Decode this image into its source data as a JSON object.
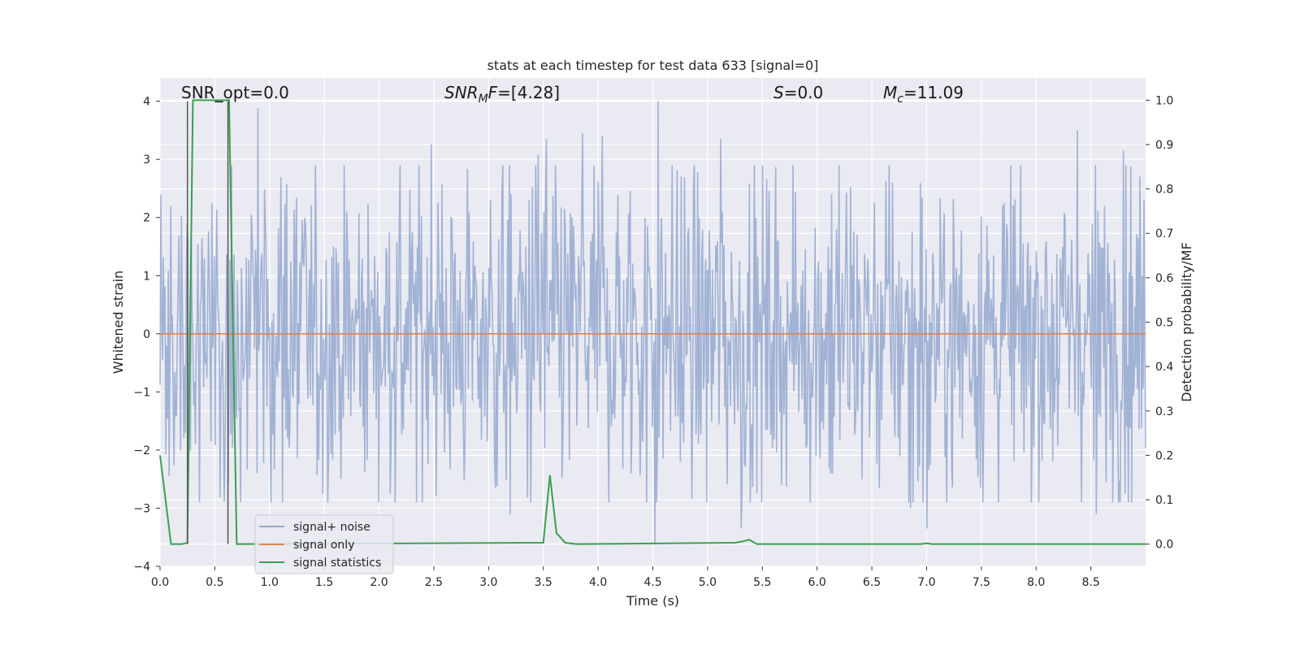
{
  "chart_data": {
    "type": "line",
    "title": "stats at each timestep for test data 633 [signal=0]",
    "xlabel": "Time (s)",
    "ylabel": "Whitened strain",
    "y2label": "Detection probability/MF",
    "xlim": [
      0.0,
      9.0
    ],
    "ylim": [
      -4.0,
      4.4
    ],
    "y2lim": [
      -0.05,
      1.05
    ],
    "xticks": [
      "0.0",
      "0.5",
      "1.0",
      "1.5",
      "2.0",
      "2.5",
      "3.0",
      "3.5",
      "4.0",
      "4.5",
      "5.0",
      "5.5",
      "6.0",
      "6.5",
      "7.0",
      "7.5",
      "8.0",
      "8.5"
    ],
    "yticks": [
      "−4",
      "−3",
      "−2",
      "−1",
      "0",
      "1",
      "2",
      "3",
      "4"
    ],
    "y2ticks": [
      "0.0",
      "0.1",
      "0.2",
      "0.3",
      "0.4",
      "0.5",
      "0.6",
      "0.7",
      "0.8",
      "0.9",
      "1.0"
    ],
    "grid": true,
    "legend_position": "lower-left",
    "annotations": [
      {
        "id": "snr-opt",
        "text": "SNR_opt=0.0"
      },
      {
        "id": "snr-mf",
        "text": "[4.28]",
        "prefix": "SNR",
        "sub": "M",
        "mid": "F="
      },
      {
        "id": "s-stat",
        "text": "=0.0",
        "prefix": "S"
      },
      {
        "id": "chirp-mass",
        "text": "=11.09",
        "prefix": "M",
        "sub": "c"
      }
    ],
    "colors": {
      "noise": "#94a8cf",
      "signal": "#dd8452",
      "statistics": "#3a9f4f",
      "vline": "#555555",
      "plot_bg": "#eaeaf2",
      "grid": "#ffffff"
    },
    "series": [
      {
        "name": "signal+ noise",
        "description": "whitened strain noise trace, approx. within [-3.6, 4.0]",
        "random_seed": 633,
        "n_points": 1200,
        "typical_abs_max": 2.0,
        "peaks": [
          {
            "x": 0.89,
            "y": 3.88
          },
          {
            "x": 2.48,
            "y": 3.26
          },
          {
            "x": 3.45,
            "y": 3.08
          },
          {
            "x": 3.53,
            "y": 3.35
          },
          {
            "x": 3.86,
            "y": 3.45
          },
          {
            "x": 4.04,
            "y": 3.4
          },
          {
            "x": 4.55,
            "y": 4.0
          },
          {
            "x": 5.12,
            "y": 3.35
          },
          {
            "x": 8.38,
            "y": 3.5
          },
          {
            "x": 8.8,
            "y": 3.15
          },
          {
            "x": 4.52,
            "y": -3.6
          },
          {
            "x": 5.31,
            "y": -3.35
          },
          {
            "x": 2.0,
            "y": -2.9
          },
          {
            "x": 3.2,
            "y": -3.1
          },
          {
            "x": 6.85,
            "y": -3.0
          },
          {
            "x": 7.0,
            "y": -3.35
          },
          {
            "x": 8.55,
            "y": -3.1
          }
        ]
      },
      {
        "name": "signal only",
        "x": [
          0.0,
          9.0
        ],
        "y": [
          0.0,
          0.0
        ]
      },
      {
        "name": "signal statistics",
        "axis": "right",
        "x": [
          0.0,
          0.05,
          0.1,
          0.2,
          0.25,
          0.3,
          0.35,
          0.6,
          0.63,
          0.7,
          3.5,
          3.56,
          3.62,
          3.7,
          3.8,
          5.25,
          5.32,
          5.38,
          5.45,
          6.95,
          7.0,
          7.05,
          9.0
        ],
        "y": [
          0.2,
          0.1,
          0.0,
          0.0,
          0.003,
          1.0,
          1.0,
          1.0,
          1.0,
          0.0,
          0.003,
          0.155,
          0.025,
          0.003,
          0.0,
          0.003,
          0.006,
          0.01,
          0.0,
          0.0,
          0.002,
          0.0,
          0.0
        ]
      }
    ],
    "vlines": [
      0.25,
      0.62
    ],
    "legend": [
      "signal+ noise",
      "signal only",
      "signal statistics"
    ]
  }
}
